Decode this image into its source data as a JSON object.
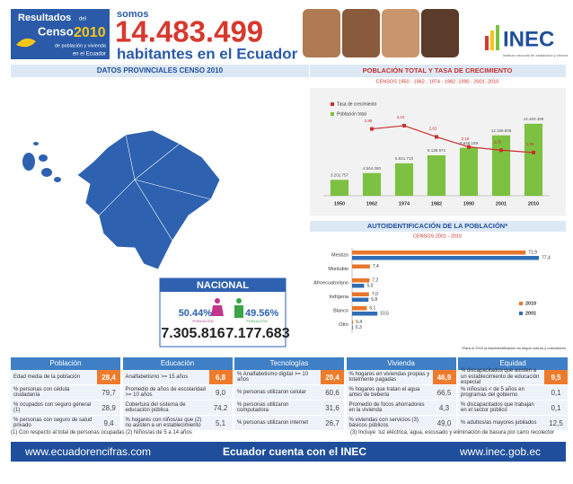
{
  "header": {
    "logo": {
      "resultados": "Resultados",
      "del": "del",
      "censo": "Censo",
      "year": "2010",
      "line3": "de población y vivienda",
      "line4": "en el Ecuador"
    },
    "somos": "somos",
    "population": "14.483.499",
    "subtitle": "habitantes en el Ecuador",
    "inec": "INEC",
    "inec_tagline": "instituto nacional de estadística y censos"
  },
  "provincial": {
    "title": "DATOS PROVINCIALES CENSO 2010"
  },
  "national": {
    "title": "NACIONAL",
    "women": {
      "percent": "50.44%",
      "label": "POBLACIÓN",
      "count": "7.305.816"
    },
    "men": {
      "percent": "49.56%",
      "label": "POBLACIÓN",
      "count": "7.177.683"
    }
  },
  "chart_data": [
    {
      "type": "bar",
      "title": "POBLACIÓN TOTAL Y TASA DE CRECIMIENTO",
      "subtitle": "CENSOS 1950 - 1962 - 1974 - 1982 -1990 - 2001 -2010",
      "categories": [
        "1950",
        "1962",
        "1974",
        "1982",
        "1990",
        "2001",
        "2010"
      ],
      "ylim": [
        0,
        19500000
      ],
      "y2lim": [
        0.1,
        4.25
      ],
      "legend": "top-left",
      "series": [
        {
          "name": "Tasa de crecimiento",
          "type": "line",
          "axis": "y2",
          "color": "#c9302c",
          "values": [
            null,
            2.96,
            3.1,
            2.62,
            2.19,
            2.05,
            1.95
          ],
          "value_labels": [
            null,
            "2,96",
            "3,10",
            "2,62",
            "2,19",
            "2,05",
            "1,95"
          ]
        },
        {
          "name": "Población total",
          "type": "bar",
          "color": "#7dc142",
          "values": [
            3202757,
            4564080,
            6521710,
            8138974,
            9648189,
            12156608,
            14483499
          ],
          "value_labels": [
            "3.202.757",
            "4.564.080",
            "6.521.710",
            "8.138.974",
            "9.648.189",
            "12.156.608",
            "14.483.499"
          ]
        }
      ]
    },
    {
      "type": "hbar",
      "title": "AUTOIDENTIFICACIÓN DE LA POBLACIÓN*",
      "subtitle": "CENSOS 2001 - 2010",
      "categories": [
        "Mestizo",
        "Montubio",
        "Afroecuatoriano",
        "Indígena",
        "Blanco",
        "Otro"
      ],
      "xlim": [
        0,
        80
      ],
      "legend": "right",
      "series": [
        {
          "name": "2010",
          "color": "#e8762b",
          "values": [
            71.9,
            7.4,
            7.2,
            7.0,
            6.1,
            0.4
          ],
          "value_labels": [
            "71,9",
            "7,4",
            "7,2",
            "7,0",
            "6,1",
            "0,4"
          ]
        },
        {
          "name": "2001",
          "color": "#2f6db5",
          "values": [
            77.4,
            null,
            5.0,
            6.8,
            10.5,
            0.3
          ],
          "value_labels": [
            "77,4",
            null,
            "5,0",
            "6,8",
            "10,5",
            "0,3"
          ]
        }
      ],
      "note": "*Para el 2010 la Autoidentificación es según cultura y costumbres"
    }
  ],
  "table": {
    "columns": [
      {
        "title": "Población",
        "rows": [
          [
            "Edad media de la población",
            "28,4"
          ],
          [
            "% personas con cédula ciudadanía",
            "79,7"
          ],
          [
            "% ocupados con seguro general (1)",
            "28,9"
          ],
          [
            "% personas con seguro de salud privado",
            "9,4"
          ]
        ]
      },
      {
        "title": "Educación",
        "rows": [
          [
            "Analfabetismo >= 15 años",
            "6,8"
          ],
          [
            "Promedio de años de escolaridad >= 10 años",
            "9,0"
          ],
          [
            "Cobertura del sistema de educación pública",
            "74,2"
          ],
          [
            "% hogares con niños/as que (2) no asisten a un establecimiento",
            "5,1"
          ]
        ]
      },
      {
        "title": "Tecnologías",
        "rows": [
          [
            "% Analfabetismo digital >= 10 años",
            "29,4"
          ],
          [
            "% personas utilizaron celular",
            "60,6"
          ],
          [
            "% personas utilizaron computadora",
            "31,6"
          ],
          [
            "% personas utilizaron internet",
            "26,7"
          ]
        ]
      },
      {
        "title": "Vivienda",
        "rows": [
          [
            "% hogares en viviendas propias y totalmente pagadas",
            "46,9"
          ],
          [
            "% hogares que tratan el agua antes de beberla",
            "66,5"
          ],
          [
            "Promedio de focos ahorradores en la vivienda",
            "4,3"
          ],
          [
            "% viviendas con servicios (3) básicos públicos",
            "49,0"
          ]
        ]
      },
      {
        "title": "Equidad",
        "rows": [
          [
            "% discapacitados que asisten a un establecimiento de educación especial",
            "9,5"
          ],
          [
            "% niños/as < de 5 años en programas del gobierno",
            "0,1"
          ],
          [
            "% discapacitados que trabajan en el sector público",
            "0,1"
          ],
          [
            "% adultos/as mayores jubilados",
            "12,5"
          ]
        ]
      }
    ]
  },
  "footnotes": [
    "(1) Con respecto al total de personas ocupadas",
    "(2) Niños/as de 5 a 14 años",
    "(3) Incluye: luz eléctrica, agua, escusado y eliminación de basura por carro recolector"
  ],
  "footer": {
    "left": "www.ecuadorencifras.com",
    "center": "Ecuador cuenta con el INEC",
    "right": "www.inec.gob.ec"
  }
}
